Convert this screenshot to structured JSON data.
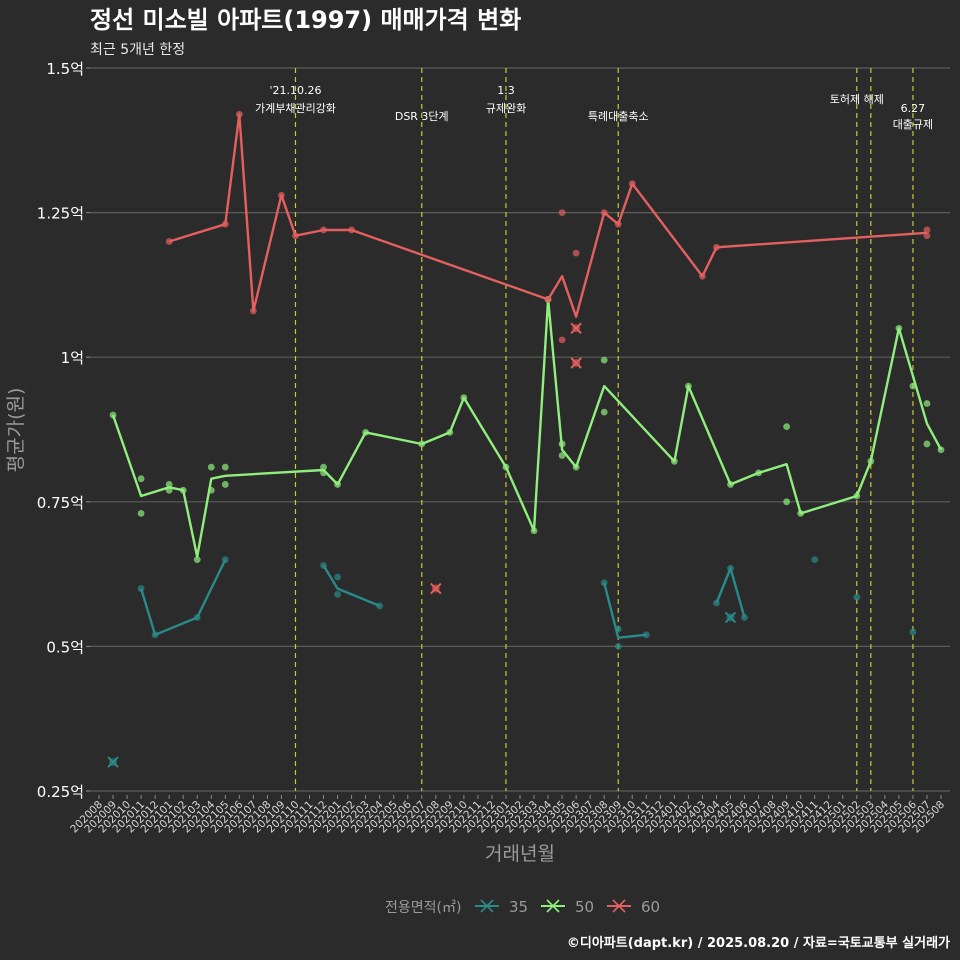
{
  "chart_data": {
    "type": "line",
    "title": "정선 미소빌 아파트(1997) 매매가격 변화",
    "subtitle": "최근 5개년 한정",
    "xlabel": "거래년월",
    "ylabel": "평균가(원)",
    "ylim": [
      0.25,
      1.5
    ],
    "y_ticks": [
      {
        "v": 0.25,
        "label": "0.25억"
      },
      {
        "v": 0.5,
        "label": "0.5억"
      },
      {
        "v": 0.75,
        "label": "0.75억"
      },
      {
        "v": 1.0,
        "label": "1억"
      },
      {
        "v": 1.25,
        "label": "1.25억"
      },
      {
        "v": 1.5,
        "label": "1.5억"
      }
    ],
    "x_categories": [
      "202008",
      "202009",
      "202010",
      "202011",
      "202012",
      "202101",
      "202102",
      "202103",
      "202104",
      "202105",
      "202106",
      "202107",
      "202108",
      "202109",
      "202110",
      "202111",
      "202112",
      "202201",
      "202202",
      "202203",
      "202204",
      "202205",
      "202206",
      "202207",
      "202208",
      "202209",
      "202210",
      "202211",
      "202212",
      "202301",
      "202302",
      "202303",
      "202304",
      "202305",
      "202306",
      "202307",
      "202308",
      "202309",
      "202310",
      "202311",
      "202312",
      "202401",
      "202402",
      "202403",
      "202404",
      "202405",
      "202406",
      "202407",
      "202408",
      "202409",
      "202410",
      "202411",
      "202412",
      "202501",
      "202502",
      "202503",
      "202504",
      "202505",
      "202506",
      "202507",
      "202508"
    ],
    "events": [
      {
        "x": "202110",
        "line1": "'21.10.26",
        "line2": "가계부채관리강화",
        "row": "upper"
      },
      {
        "x": "202207",
        "line1": "DSR 3단계",
        "line2": "",
        "row": "lower"
      },
      {
        "x": "202301",
        "line1": "1.3",
        "line2": "규제완화",
        "row": "upper"
      },
      {
        "x": "202309",
        "line1": "특례대출축소",
        "line2": "",
        "row": "lower"
      },
      {
        "x": "202502",
        "line1": "토허제 해제",
        "line2": "",
        "row": "top"
      },
      {
        "x": "202503",
        "line1": "",
        "line2": "",
        "row": "none"
      },
      {
        "x": "202506",
        "line1": "6.27",
        "line2": "대출규제",
        "row": "mid"
      }
    ],
    "series": [
      {
        "name": "35",
        "color": "#2a8a8a",
        "line": [
          [
            [
              "202011",
              0.6
            ],
            [
              "202012",
              0.52
            ],
            [
              "202103",
              0.55
            ],
            [
              "202105",
              0.65
            ]
          ],
          [
            [
              "202112",
              0.64
            ],
            [
              "202201",
              0.6
            ],
            [
              "202204",
              0.57
            ]
          ],
          [
            [
              "202308",
              0.61
            ],
            [
              "202309",
              0.515
            ],
            [
              "202311",
              0.52
            ]
          ],
          [
            [
              "202404",
              0.575
            ],
            [
              "202405",
              0.635
            ],
            [
              "202406",
              0.55
            ]
          ]
        ],
        "points": [
          [
            "202011",
            0.6
          ],
          [
            "202012",
            0.52
          ],
          [
            "202103",
            0.55
          ],
          [
            "202105",
            0.65
          ],
          [
            "202112",
            0.64
          ],
          [
            "202201",
            0.62
          ],
          [
            "202201",
            0.59
          ],
          [
            "202204",
            0.57
          ],
          [
            "202308",
            0.61
          ],
          [
            "202309",
            0.53
          ],
          [
            "202309",
            0.5
          ],
          [
            "202311",
            0.52
          ],
          [
            "202404",
            0.575
          ],
          [
            "202405",
            0.635
          ],
          [
            "202406",
            0.55
          ],
          [
            "202411",
            0.65
          ],
          [
            "202502",
            0.585
          ],
          [
            "202506",
            0.525
          ]
        ],
        "crosses": [
          [
            "202009",
            0.3
          ],
          [
            "202405",
            0.55
          ]
        ]
      },
      {
        "name": "50",
        "color": "#90ee7e",
        "line": [
          [
            [
              "202009",
              0.9
            ],
            [
              "202011",
              0.76
            ],
            [
              "202101",
              0.775
            ],
            [
              "202102",
              0.77
            ],
            [
              "202103",
              0.655
            ],
            [
              "202104",
              0.79
            ],
            [
              "202105",
              0.795
            ],
            [
              "202112",
              0.805
            ],
            [
              "202201",
              0.78
            ],
            [
              "202203",
              0.87
            ],
            [
              "202207",
              0.85
            ],
            [
              "202209",
              0.87
            ],
            [
              "202210",
              0.93
            ],
            [
              "202301",
              0.81
            ],
            [
              "202303",
              0.7
            ],
            [
              "202304",
              1.1
            ],
            [
              "202305",
              0.84
            ],
            [
              "202306",
              0.81
            ],
            [
              "202308",
              0.95
            ],
            [
              "202401",
              0.82
            ],
            [
              "202402",
              0.95
            ],
            [
              "202405",
              0.78
            ],
            [
              "202407",
              0.8
            ],
            [
              "202409",
              0.815
            ],
            [
              "202410",
              0.73
            ],
            [
              "202502",
              0.76
            ],
            [
              "202503",
              0.82
            ],
            [
              "202505",
              1.05
            ],
            [
              "202507",
              0.885
            ],
            [
              "202508",
              0.84
            ]
          ]
        ],
        "points": [
          [
            "202009",
            0.9
          ],
          [
            "202011",
            0.79
          ],
          [
            "202011",
            0.73
          ],
          [
            "202101",
            0.78
          ],
          [
            "202101",
            0.77
          ],
          [
            "202102",
            0.77
          ],
          [
            "202103",
            0.65
          ],
          [
            "202104",
            0.81
          ],
          [
            "202104",
            0.77
          ],
          [
            "202105",
            0.81
          ],
          [
            "202105",
            0.78
          ],
          [
            "202112",
            0.81
          ],
          [
            "202112",
            0.8
          ],
          [
            "202201",
            0.78
          ],
          [
            "202203",
            0.87
          ],
          [
            "202207",
            0.85
          ],
          [
            "202209",
            0.87
          ],
          [
            "202210",
            0.93
          ],
          [
            "202301",
            0.81
          ],
          [
            "202303",
            0.7
          ],
          [
            "202304",
            1.1
          ],
          [
            "202305",
            0.85
          ],
          [
            "202305",
            0.83
          ],
          [
            "202306",
            0.81
          ],
          [
            "202308",
            0.995
          ],
          [
            "202308",
            0.905
          ],
          [
            "202401",
            0.82
          ],
          [
            "202402",
            0.95
          ],
          [
            "202405",
            0.78
          ],
          [
            "202407",
            0.8
          ],
          [
            "202409",
            0.88
          ],
          [
            "202409",
            0.75
          ],
          [
            "202410",
            0.73
          ],
          [
            "202502",
            0.76
          ],
          [
            "202503",
            0.82
          ],
          [
            "202505",
            1.05
          ],
          [
            "202506",
            0.95
          ],
          [
            "202507",
            0.92
          ],
          [
            "202507",
            0.85
          ],
          [
            "202508",
            0.84
          ]
        ],
        "crosses": []
      },
      {
        "name": "60",
        "color": "#e45f5f",
        "line": [
          [
            [
              "202101",
              1.2
            ],
            [
              "202105",
              1.23
            ],
            [
              "202106",
              1.42
            ],
            [
              "202107",
              1.08
            ],
            [
              "202109",
              1.28
            ],
            [
              "202110",
              1.21
            ],
            [
              "202112",
              1.22
            ],
            [
              "202202",
              1.22
            ],
            [
              "202304",
              1.1
            ],
            [
              "202305",
              1.14
            ],
            [
              "202306",
              1.07
            ],
            [
              "202308",
              1.25
            ],
            [
              "202309",
              1.23
            ],
            [
              "202310",
              1.3
            ],
            [
              "202403",
              1.14
            ],
            [
              "202404",
              1.19
            ],
            [
              "202507",
              1.215
            ]
          ]
        ],
        "points": [
          [
            "202101",
            1.2
          ],
          [
            "202105",
            1.23
          ],
          [
            "202106",
            1.42
          ],
          [
            "202107",
            1.08
          ],
          [
            "202109",
            1.28
          ],
          [
            "202110",
            1.21
          ],
          [
            "202112",
            1.22
          ],
          [
            "202202",
            1.22
          ],
          [
            "202304",
            1.1
          ],
          [
            "202305",
            1.25
          ],
          [
            "202305",
            1.03
          ],
          [
            "202306",
            1.18
          ],
          [
            "202308",
            1.25
          ],
          [
            "202309",
            1.23
          ],
          [
            "202310",
            1.3
          ],
          [
            "202403",
            1.14
          ],
          [
            "202404",
            1.19
          ],
          [
            "202507",
            1.22
          ],
          [
            "202507",
            1.21
          ]
        ],
        "crosses": [
          [
            "202306",
            1.05
          ],
          [
            "202306",
            0.99
          ],
          [
            "202208",
            0.6
          ]
        ]
      }
    ],
    "legend_title": "전용면적(㎡)",
    "legend_position": "bottom"
  },
  "footer": "©디아파트(dapt.kr) / 2025.08.20 / 자료=국토교통부 실거래가",
  "colors": {
    "background": "#2b2b2b",
    "grid": "#5a5a5a",
    "event_line": "#c8c83a",
    "text": "#ffffff",
    "muted": "#9a9a9a"
  }
}
